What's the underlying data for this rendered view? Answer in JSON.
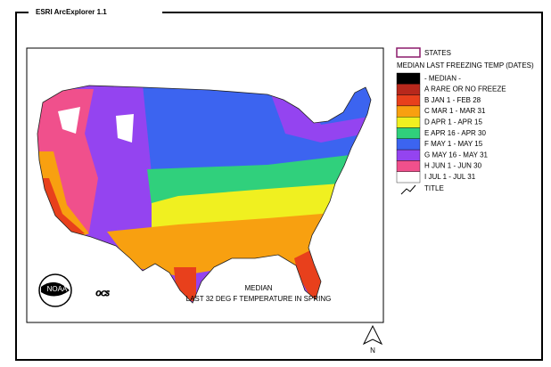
{
  "window": {
    "title": "ESRI ArcExplorer 1.1"
  },
  "legend": {
    "states_label": "STATES",
    "header": "MEDIAN LAST FREEZING TEMP (DATES)",
    "items": [
      {
        "label": "- MEDIAN -",
        "color": "#000000"
      },
      {
        "label": "A RARE OR NO FREEZE",
        "color": "#b8281c"
      },
      {
        "label": "B JAN 1 - FEB 28",
        "color": "#e8401c"
      },
      {
        "label": "C MAR 1 - MAR 31",
        "color": "#f8a010"
      },
      {
        "label": "D APR 1 - APR 15",
        "color": "#f0f020"
      },
      {
        "label": "E APR 16 - APR 30",
        "color": "#30d07c"
      },
      {
        "label": "F MAY 1 - MAY 15",
        "color": "#3c64f0"
      },
      {
        "label": "G MAY 16 - MAY 31",
        "color": "#9444f0"
      },
      {
        "label": "H JUN 1 - JUN 30",
        "color": "#f0508c"
      },
      {
        "label": "I JUL 1 - JUL 31",
        "color": "#ffffff"
      }
    ],
    "title_label": "TITLE"
  },
  "map": {
    "caption_line1": "MEDIAN",
    "caption_line2": "LAST 32 DEG F TEMPERATURE IN SPRING",
    "logo_text": "NOAA",
    "ocs_text": "OCS",
    "north": "N"
  }
}
